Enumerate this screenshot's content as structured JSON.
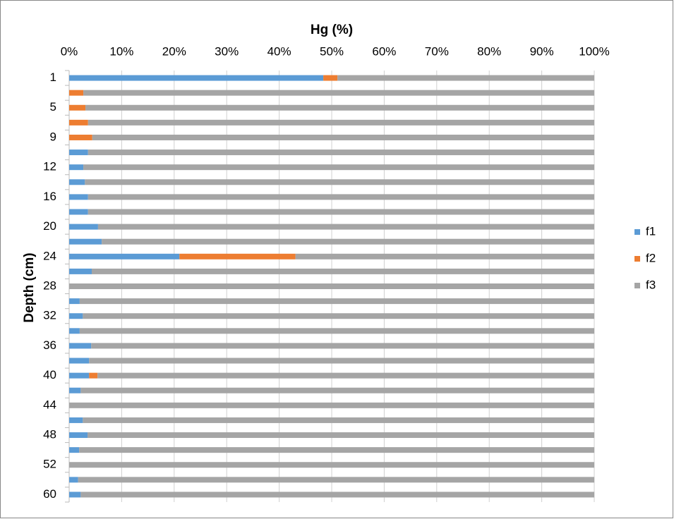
{
  "chart_data": {
    "type": "stacked-barh",
    "title": "Hg (%)",
    "ylabel": "Depth (cm)",
    "categories": [
      "1",
      null,
      "5",
      null,
      "9",
      null,
      "12",
      null,
      "16",
      null,
      "20",
      null,
      "24",
      null,
      "28",
      null,
      "32",
      null,
      "36",
      null,
      "40",
      null,
      "44",
      null,
      "48",
      null,
      "52",
      null,
      "60"
    ],
    "series": [
      {
        "name": "f1",
        "color": "#5b9bd5",
        "values": [
          48.4,
          0,
          0,
          0,
          0,
          3.6,
          2.7,
          3.0,
          3.6,
          3.6,
          5.5,
          6.2,
          21.0,
          4.3,
          0,
          2.0,
          2.6,
          2.0,
          4.2,
          3.8,
          3.8,
          2.2,
          0,
          2.6,
          3.5,
          1.9,
          0,
          1.7,
          2.2
        ]
      },
      {
        "name": "f2",
        "color": "#ed7d31",
        "values": [
          2.7,
          2.7,
          3.1,
          3.6,
          4.4,
          0,
          0,
          0,
          0,
          0,
          0,
          0,
          22.1,
          0,
          0,
          0,
          0,
          0,
          0,
          0,
          1.6,
          0,
          0,
          0,
          0,
          0,
          0,
          0,
          0
        ]
      },
      {
        "name": "f3",
        "color": "#a5a5a5",
        "values": [
          48.9,
          97.3,
          96.9,
          96.4,
          95.6,
          96.4,
          97.3,
          97.0,
          96.4,
          96.4,
          94.5,
          93.8,
          56.9,
          95.7,
          100,
          98.0,
          97.4,
          98.0,
          95.8,
          96.2,
          94.6,
          97.8,
          100,
          97.4,
          96.5,
          98.1,
          100,
          98.3,
          97.8
        ]
      }
    ],
    "xlim": [
      0,
      100
    ],
    "xticks": [
      {
        "value": 0,
        "label": "0%"
      },
      {
        "value": 10,
        "label": "10%"
      },
      {
        "value": 20,
        "label": "20%"
      },
      {
        "value": 30,
        "label": "30%"
      },
      {
        "value": 40,
        "label": "40%"
      },
      {
        "value": 50,
        "label": "50%"
      },
      {
        "value": 60,
        "label": "60%"
      },
      {
        "value": 70,
        "label": "70%"
      },
      {
        "value": 80,
        "label": "80%"
      },
      {
        "value": 90,
        "label": "90%"
      },
      {
        "value": 100,
        "label": "100%"
      }
    ],
    "grid": true,
    "legend": "right"
  }
}
